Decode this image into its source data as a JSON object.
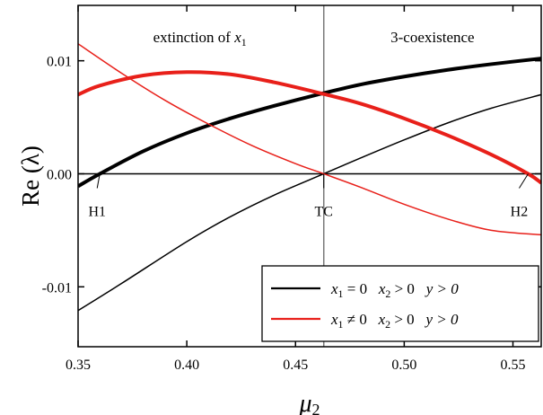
{
  "chart_data": {
    "type": "line",
    "xlabel": "μ₂",
    "xlabel_main": "μ",
    "xlabel_sub": "2",
    "ylabel": "Re (λ)",
    "xlim": [
      0.35,
      0.563
    ],
    "ylim": [
      -0.0153,
      0.0149
    ],
    "x_ticks": [
      0.35,
      0.4,
      0.45,
      0.5,
      0.55
    ],
    "x_tick_labels": [
      "0.35",
      "0.40",
      "0.45",
      "0.50",
      "0.55"
    ],
    "y_ticks": [
      -0.01,
      0.0,
      0.01
    ],
    "y_tick_labels": [
      "-0.01",
      "0.00",
      "0.01"
    ],
    "grid": false,
    "legend_position": "bottom-right",
    "zero_line": 0.0,
    "vertical_marker": {
      "x": 0.463,
      "label": "TC"
    },
    "regions": [
      {
        "label_prefix": "extinction of ",
        "var": "x",
        "sub": "1",
        "x_center": 0.406
      },
      {
        "label_prefix": "3-coexistence",
        "var": "",
        "sub": "",
        "x_center": 0.513
      }
    ],
    "annotations": [
      {
        "label": "H1",
        "x": 0.36,
        "y": 0.0
      },
      {
        "label": "TC",
        "x": 0.463,
        "y": 0.0
      },
      {
        "label": "H2",
        "x": 0.557,
        "y": 0.0
      }
    ],
    "legend": [
      {
        "color": "#000000",
        "parts": [
          {
            "t": "x",
            "i": true
          },
          {
            "t": "1",
            "s": true
          },
          {
            "t": " = 0   "
          },
          {
            "t": "x",
            "i": true
          },
          {
            "t": "2",
            "s": true
          },
          {
            "t": " > 0   "
          },
          {
            "t": "y > 0",
            "i": true
          }
        ]
      },
      {
        "color": "#e8201a",
        "parts": [
          {
            "t": "x",
            "i": true
          },
          {
            "t": "1",
            "s": true
          },
          {
            "t": " ≠ 0   "
          },
          {
            "t": "x",
            "i": true
          },
          {
            "t": "2",
            "s": true
          },
          {
            "t": " > 0   "
          },
          {
            "t": "y > 0",
            "i": true
          }
        ]
      }
    ],
    "series": [
      {
        "color": "#000000",
        "width": 4,
        "x": [
          0.35,
          0.36,
          0.38,
          0.4,
          0.42,
          0.44,
          0.46,
          0.48,
          0.5,
          0.52,
          0.54,
          0.563
        ],
        "y": [
          -0.0011,
          0.0,
          0.002,
          0.0036,
          0.0049,
          0.006,
          0.007,
          0.0079,
          0.0086,
          0.0092,
          0.0097,
          0.0102
        ]
      },
      {
        "color": "#000000",
        "width": 1.5,
        "x": [
          0.35,
          0.37,
          0.4,
          0.42,
          0.44,
          0.463,
          0.48,
          0.5,
          0.52,
          0.54,
          0.563
        ],
        "y": [
          -0.0121,
          -0.0097,
          -0.006,
          -0.0038,
          -0.0019,
          0.0,
          0.0014,
          0.003,
          0.0045,
          0.0058,
          0.007
        ]
      },
      {
        "color": "#e8201a",
        "width": 4,
        "x": [
          0.35,
          0.36,
          0.38,
          0.4,
          0.42,
          0.44,
          0.46,
          0.48,
          0.5,
          0.52,
          0.54,
          0.557,
          0.563
        ],
        "y": [
          0.007,
          0.0078,
          0.0087,
          0.009,
          0.0088,
          0.0081,
          0.0072,
          0.0062,
          0.0049,
          0.0034,
          0.0017,
          0.0,
          -0.0008
        ]
      },
      {
        "color": "#e8201a",
        "width": 1.5,
        "x": [
          0.35,
          0.37,
          0.39,
          0.41,
          0.43,
          0.45,
          0.463,
          0.48,
          0.5,
          0.52,
          0.54,
          0.563
        ],
        "y": [
          0.0115,
          0.0089,
          0.0065,
          0.0044,
          0.0025,
          0.0009,
          0.0,
          -0.0012,
          -0.0027,
          -0.004,
          -0.005,
          -0.0054
        ]
      }
    ]
  }
}
